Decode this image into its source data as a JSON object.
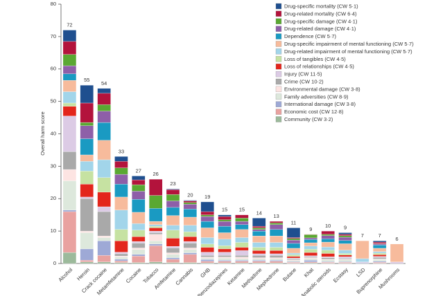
{
  "chart_data": {
    "type": "stacked_bar",
    "y_label": "Overall harm score",
    "categories": [
      "Alcohol",
      "Heroin",
      "Crack cocaine",
      "Metamfetamine",
      "Cocaine",
      "Tobacco",
      "Amfetamine",
      "Cannabis",
      "GHB",
      "Benzodiazepines",
      "Ketamine",
      "Methadone",
      "Mephedrone",
      "Butane",
      "Khat",
      "Anabolic steroids",
      "Ecstasy",
      "LSD",
      "Buprenorphine",
      "Mushrooms"
    ],
    "totals": [
      72,
      55,
      54,
      33,
      27,
      26,
      23,
      20,
      19,
      15,
      15,
      14,
      13,
      11,
      9,
      10,
      9,
      7,
      7,
      6
    ],
    "ylim": [
      0,
      80
    ],
    "yticks": [
      0,
      10,
      20,
      30,
      40,
      50,
      60,
      70,
      80
    ],
    "legend": "top-right",
    "series": [
      {
        "name": "Drug-specific mortality (CW 5·1)",
        "color": "#1f4f8f",
        "values": [
          3.5,
          5.5,
          1.5,
          1.5,
          1.2,
          0,
          0.2,
          0.2,
          3,
          0.5,
          0,
          2.5,
          0,
          3,
          0,
          0,
          0.5,
          0,
          0.4,
          0
        ]
      },
      {
        "name": "Drug-related mortality (CW 6·4)",
        "color": "#b3133c",
        "values": [
          4,
          6,
          3.5,
          2,
          1.5,
          5,
          1.5,
          0.5,
          1,
          1,
          1,
          0.5,
          0.5,
          0.3,
          0.1,
          1,
          0.4,
          0,
          0.5,
          0
        ]
      },
      {
        "name": "Drug-specific damage (CW 4·1)",
        "color": "#5aa832",
        "values": [
          3.5,
          1,
          2,
          2,
          2,
          4,
          2,
          0.5,
          0.5,
          0.5,
          1,
          0.5,
          0.5,
          0.5,
          1,
          0.4,
          0.5,
          0,
          0.1,
          0
        ]
      },
      {
        "name": "Drug-related damage (CW 4·1)",
        "color": "#8e5fa8",
        "values": [
          2.5,
          4,
          3.5,
          3,
          2.5,
          0,
          2,
          1.5,
          1.5,
          1.5,
          1,
          0.5,
          1.5,
          1,
          0.5,
          1,
          1,
          0,
          0.3,
          0
        ]
      },
      {
        "name": "Dependence (CW 5·7)",
        "color": "#1a9ac2",
        "values": [
          2,
          5,
          5.5,
          4,
          4,
          4,
          2.5,
          2.5,
          2,
          2,
          1.5,
          1.5,
          2,
          1.5,
          1,
          1,
          1,
          0,
          1,
          0
        ]
      },
      {
        "name": "Drug-specific impairment of mental functioning (CW 5·7)",
        "color": "#f7bb9c",
        "values": [
          3.5,
          2,
          6,
          4,
          3.5,
          1,
          3,
          2.5,
          3,
          2,
          2.5,
          2,
          2,
          1.5,
          1,
          1.5,
          2,
          5.5,
          1,
          5.5
        ]
      },
      {
        "name": "Drug-related impairment of mental functioning (CW 5·7)",
        "color": "#a2d5ea",
        "values": [
          3.5,
          3,
          5.5,
          6,
          2,
          0.5,
          1.5,
          2,
          2,
          2,
          1.5,
          1.5,
          1.5,
          0.5,
          1,
          1,
          1,
          1,
          0.5,
          0
        ]
      },
      {
        "name": "Loss of tangibles (CW 4·5)",
        "color": "#c6e2a2",
        "values": [
          1,
          4,
          4.5,
          3.5,
          2,
          0.5,
          2.5,
          1.5,
          1,
          1,
          1.5,
          1,
          1,
          0.5,
          1,
          1,
          0.5,
          0,
          0.5,
          0
        ]
      },
      {
        "name": "Loss of relationships (CW 4·5)",
        "color": "#e3261c",
        "values": [
          3,
          4,
          4.5,
          3.5,
          1.5,
          1,
          2.5,
          1.5,
          1.5,
          1,
          1,
          1,
          1,
          0.5,
          1,
          1,
          0.5,
          0,
          0.5,
          0
        ]
      },
      {
        "name": "Injury (CW 11·5)",
        "color": "#dccbe5",
        "values": [
          11,
          0.5,
          1.5,
          0.5,
          0.5,
          0.5,
          0.5,
          0.5,
          1,
          1,
          1.5,
          0.5,
          0.5,
          0.3,
          0.3,
          0.3,
          0.5,
          0.3,
          0.3,
          0.5
        ]
      },
      {
        "name": "Crime (CW 10·2)",
        "color": "#a9a9a9",
        "values": [
          5.5,
          10,
          7.5,
          0.7,
          1.5,
          0.5,
          1.5,
          1.5,
          0.5,
          0.5,
          0.5,
          0.7,
          0.7,
          0.3,
          0.3,
          0.5,
          0.3,
          0,
          0.5,
          0
        ]
      },
      {
        "name": "Environmental damage (CW 3·8)",
        "color": "#fde4e2",
        "values": [
          3.5,
          0.5,
          0.5,
          0.3,
          0.5,
          2,
          0.5,
          0.5,
          0.3,
          0.3,
          0.5,
          0.3,
          0.3,
          0.2,
          0.3,
          0.2,
          0.2,
          0,
          0.2,
          0
        ]
      },
      {
        "name": "Family adversities (CW 8·9)",
        "color": "#dde8dc",
        "values": [
          9,
          5,
          1,
          0.7,
          1.5,
          1,
          1,
          1,
          0.5,
          0.7,
          0.5,
          0.5,
          0.5,
          0.3,
          0.5,
          0.5,
          0.5,
          0,
          0.5,
          0
        ]
      },
      {
        "name": "International damage (CW 3·8)",
        "color": "#9ea9d6",
        "values": [
          0.5,
          3.5,
          4.5,
          0.5,
          0.5,
          0.5,
          0.5,
          0.5,
          0.5,
          0.3,
          0.3,
          0.3,
          0.3,
          0.2,
          0.5,
          0.2,
          0.2,
          0.2,
          0.3,
          0
        ]
      },
      {
        "name": "Economic cost (CW 12·8)",
        "color": "#e9a2a0",
        "values": [
          12.6,
          0.5,
          2,
          0.5,
          2,
          5,
          1,
          2.5,
          0.5,
          0.5,
          0.5,
          0.5,
          0.5,
          0.3,
          0.3,
          0.3,
          0.3,
          0,
          0.3,
          0
        ]
      },
      {
        "name": "Community (CW 3·2)",
        "color": "#9cba9b",
        "values": [
          3.4,
          0.5,
          0.5,
          0.3,
          0.3,
          0.5,
          0.3,
          0.3,
          0.2,
          0.2,
          0.2,
          0.2,
          0.2,
          0.1,
          0.2,
          0.1,
          0.1,
          0,
          0.1,
          0
        ]
      }
    ]
  }
}
